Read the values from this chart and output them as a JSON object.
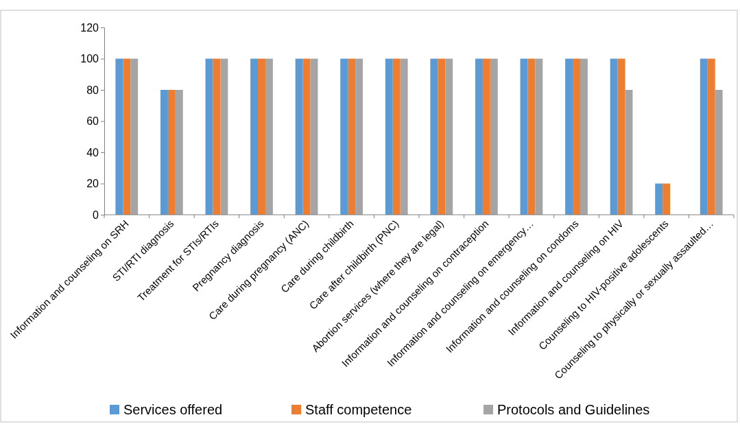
{
  "chart_data": {
    "type": "bar",
    "categories": [
      "Information and counseling on SRH",
      "STI/RTI diagnosis",
      "Treatment for STIs/RTIs",
      "Pregnancy diagnosis",
      "Care during pregnancy (ANC)",
      "Care during childbirth",
      "Care after childbirth (PNC)",
      "Abortion services (where they are legal)",
      "Information and counseling on contraception",
      "Information and counseling on emergency…",
      "Information and counseling on condoms",
      "Information and counseling on HIV",
      "Counseling to HIV-positive adolescents",
      "Counseling to physically or sexually assaulted…"
    ],
    "series": [
      {
        "name": "Services offered",
        "color": "#5b9bd5",
        "values": [
          100,
          80,
          100,
          100,
          100,
          100,
          100,
          100,
          100,
          100,
          100,
          100,
          20,
          100
        ]
      },
      {
        "name": "Staff competence",
        "color": "#ed7d31",
        "values": [
          100,
          80,
          100,
          100,
          100,
          100,
          100,
          100,
          100,
          100,
          100,
          100,
          20,
          100
        ]
      },
      {
        "name": "Protocols and Guidelines",
        "color": "#a5a5a5",
        "values": [
          100,
          80,
          100,
          100,
          100,
          100,
          100,
          100,
          100,
          100,
          100,
          80,
          0,
          80
        ]
      }
    ],
    "ylim": [
      0,
      120
    ],
    "yticks": [
      0,
      20,
      40,
      60,
      80,
      100,
      120
    ],
    "grid": false,
    "legend": "bottom"
  }
}
